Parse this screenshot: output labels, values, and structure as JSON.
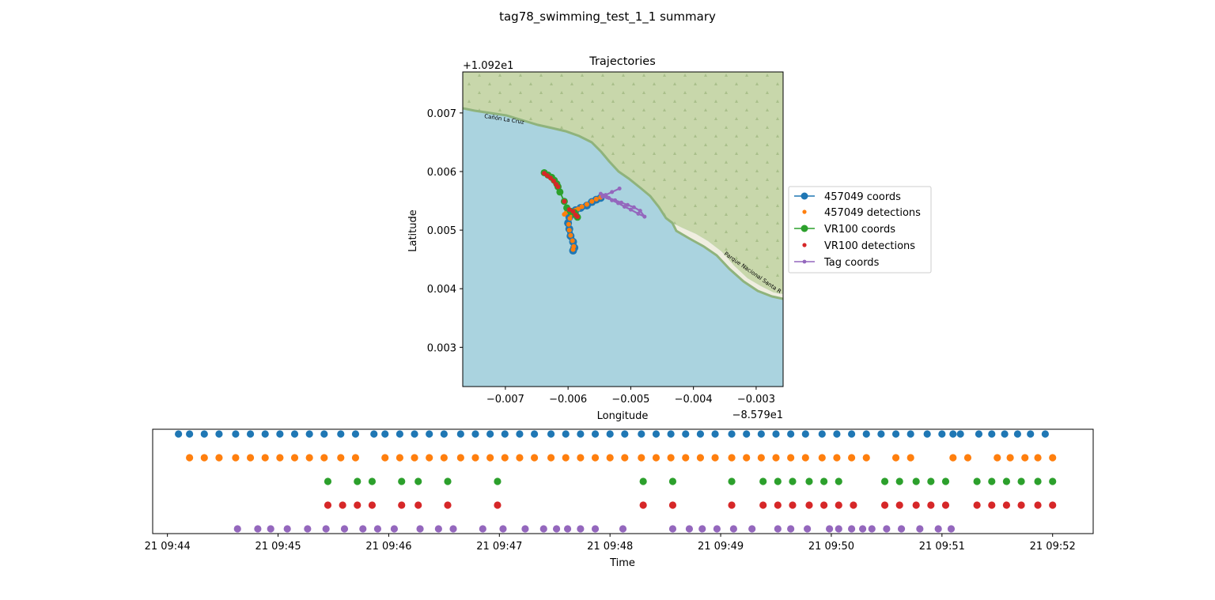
{
  "figure": {
    "title": "tag78_swimming_test_1_1 summary"
  },
  "colors": {
    "blue": "#1f77b4",
    "orange": "#ff7f0e",
    "green": "#2ca02c",
    "red": "#d62728",
    "purple": "#9467bd",
    "water": "#aad3df",
    "land": "#c8d7ab",
    "beach": "#f0eee0",
    "coast": "#8fb37c"
  },
  "chart_data": [
    {
      "type": "line",
      "title": "Trajectories",
      "xlabel": "Longitude",
      "ylabel": "Latitude",
      "x_offset_label": "−8.579e1",
      "y_offset_label": "+1.092e1",
      "xlim": [
        -0.00768,
        -0.00257
      ],
      "ylim": [
        0.00233,
        0.0077
      ],
      "xticks": [
        -0.007,
        -0.006,
        -0.005,
        -0.004,
        -0.003
      ],
      "xtick_labels": [
        "−0.007",
        "−0.006",
        "−0.005",
        "−0.004",
        "−0.003"
      ],
      "yticks": [
        0.003,
        0.004,
        0.005,
        0.006,
        0.007
      ],
      "ytick_labels": [
        "0.003",
        "0.004",
        "0.005",
        "0.006",
        "0.007"
      ],
      "map_labels": [
        "Cañón La Cruz",
        "Parque Nacional Santa R"
      ],
      "legend_placement": "right",
      "series": [
        {
          "name": "457049 coords",
          "color": "#1f77b4",
          "style": "line-marker",
          "x": [
            -0.00592,
            -0.0059,
            -0.00592,
            -0.00596,
            -0.00598,
            -0.006,
            -0.00598,
            -0.00592,
            -0.0059,
            -0.00588,
            -0.0058,
            -0.0057,
            -0.00562,
            -0.00555,
            -0.00548
          ],
          "y": [
            0.00465,
            0.0047,
            0.0048,
            0.0049,
            0.00502,
            0.00512,
            0.00522,
            0.00528,
            0.00532,
            0.00534,
            0.00538,
            0.00542,
            0.00548,
            0.00552,
            0.00555
          ]
        },
        {
          "name": "457049 detections",
          "color": "#ff7f0e",
          "style": "marker",
          "x": [
            -0.00592,
            -0.00591,
            -0.00593,
            -0.00596,
            -0.00598,
            -0.00599,
            -0.00597,
            -0.00594,
            -0.0059,
            -0.00588,
            -0.00584,
            -0.00578,
            -0.0057,
            -0.00562,
            -0.00555,
            -0.00548,
            -0.00603,
            -0.00606
          ],
          "y": [
            0.00467,
            0.00472,
            0.00482,
            0.00491,
            0.005,
            0.0051,
            0.0052,
            0.00527,
            0.00531,
            0.00534,
            0.00536,
            0.0054,
            0.00544,
            0.00549,
            0.00553,
            0.00556,
            0.0053,
            0.00527
          ]
        },
        {
          "name": "VR100 coords",
          "color": "#2ca02c",
          "style": "line-marker",
          "x": [
            -0.00638,
            -0.00632,
            -0.00626,
            -0.00622,
            -0.00618,
            -0.00616,
            -0.00613,
            -0.00606,
            -0.00602,
            -0.00596,
            -0.0059,
            -0.00585,
            -0.00588
          ],
          "y": [
            0.00598,
            0.00594,
            0.0059,
            0.00585,
            0.00579,
            0.00574,
            0.00565,
            0.00549,
            0.00538,
            0.00532,
            0.0053,
            0.00522,
            0.00526
          ]
        },
        {
          "name": "VR100 detections",
          "color": "#d62728",
          "style": "marker",
          "x": [
            -0.00638,
            -0.00633,
            -0.00628,
            -0.00623,
            -0.00619,
            -0.00616,
            -0.00606,
            -0.00598,
            -0.00592,
            -0.00588,
            -0.00585
          ],
          "y": [
            0.00597,
            0.00593,
            0.00589,
            0.00584,
            0.00578,
            0.00574,
            0.00549,
            0.00535,
            0.00532,
            0.00526,
            0.00523
          ]
        },
        {
          "name": "Tag coords",
          "color": "#9467bd",
          "style": "line-marker",
          "x": [
            -0.00518,
            -0.0053,
            -0.0054,
            -0.00548,
            -0.00545,
            -0.00535,
            -0.00525,
            -0.00515,
            -0.00505,
            -0.00495,
            -0.00485,
            -0.00478,
            -0.00488,
            -0.005,
            -0.0051,
            -0.0052,
            -0.0053,
            -0.00538
          ],
          "y": [
            0.00571,
            0.00565,
            0.0056,
            0.00562,
            0.00557,
            0.00555,
            0.00551,
            0.00547,
            0.00543,
            0.00539,
            0.00533,
            0.00523,
            0.00528,
            0.00535,
            0.0054,
            0.00546,
            0.00551,
            0.00556
          ]
        }
      ]
    },
    {
      "type": "scatter",
      "xlabel": "Time",
      "xlim": [
        "21 09:43:52",
        "21 09:52:22"
      ],
      "xticks": [
        "21 09:44",
        "21 09:45",
        "21 09:46",
        "21 09:47",
        "21 09:48",
        "21 09:49",
        "21 09:50",
        "21 09:51",
        "21 09:52"
      ],
      "series": [
        {
          "name": "457049 coords",
          "color": "#1f77b4",
          "x": [
            "09:44:06",
            "09:44:12",
            "09:44:20",
            "09:44:28",
            "09:44:37",
            "09:44:45",
            "09:44:53",
            "09:45:01",
            "09:45:09",
            "09:45:17",
            "09:45:25",
            "09:45:34",
            "09:45:42",
            "09:45:52",
            "09:45:58",
            "09:46:06",
            "09:46:14",
            "09:46:22",
            "09:46:30",
            "09:46:39",
            "09:46:47",
            "09:46:55",
            "09:47:03",
            "09:47:11",
            "09:47:19",
            "09:47:28",
            "09:47:36",
            "09:47:44",
            "09:47:52",
            "09:48:00",
            "09:48:08",
            "09:48:17",
            "09:48:25",
            "09:48:33",
            "09:48:41",
            "09:48:49",
            "09:48:57",
            "09:49:06",
            "09:49:14",
            "09:49:22",
            "09:49:30",
            "09:49:38",
            "09:49:46",
            "09:49:55",
            "09:50:03",
            "09:50:11",
            "09:50:19",
            "09:50:27",
            "09:50:35",
            "09:50:43",
            "09:50:52",
            "09:51:00",
            "09:51:06",
            "09:51:10",
            "09:51:20",
            "09:51:27",
            "09:51:34",
            "09:51:41",
            "09:51:48",
            "09:51:56"
          ]
        },
        {
          "name": "457049 detections",
          "color": "#ff7f0e",
          "x": [
            "09:44:12",
            "09:44:20",
            "09:44:28",
            "09:44:37",
            "09:44:45",
            "09:44:53",
            "09:45:01",
            "09:45:09",
            "09:45:17",
            "09:45:25",
            "09:45:34",
            "09:45:42",
            "09:45:58",
            "09:46:06",
            "09:46:14",
            "09:46:22",
            "09:46:30",
            "09:46:39",
            "09:46:47",
            "09:46:55",
            "09:47:03",
            "09:47:11",
            "09:47:19",
            "09:47:28",
            "09:47:36",
            "09:47:44",
            "09:47:52",
            "09:48:00",
            "09:48:08",
            "09:48:17",
            "09:48:25",
            "09:48:33",
            "09:48:41",
            "09:48:49",
            "09:48:57",
            "09:49:06",
            "09:49:14",
            "09:49:22",
            "09:49:30",
            "09:49:38",
            "09:49:46",
            "09:49:55",
            "09:50:03",
            "09:50:11",
            "09:50:19",
            "09:50:35",
            "09:50:43",
            "09:51:06",
            "09:51:14",
            "09:51:30",
            "09:51:37",
            "09:51:45",
            "09:51:52",
            "09:52:00"
          ]
        },
        {
          "name": "VR100 coords",
          "color": "#2ca02c",
          "x": [
            "09:45:27",
            "09:45:43",
            "09:45:51",
            "09:46:07",
            "09:46:16",
            "09:46:32",
            "09:46:59",
            "09:48:18",
            "09:48:34",
            "09:49:06",
            "09:49:23",
            "09:49:31",
            "09:49:39",
            "09:49:48",
            "09:49:56",
            "09:50:04",
            "09:50:29",
            "09:50:37",
            "09:50:46",
            "09:50:54",
            "09:51:02",
            "09:51:19",
            "09:51:27",
            "09:51:35",
            "09:51:43",
            "09:51:52",
            "09:52:00"
          ]
        },
        {
          "name": "VR100 detections",
          "color": "#d62728",
          "x": [
            "09:45:27",
            "09:45:35",
            "09:45:43",
            "09:45:51",
            "09:46:07",
            "09:46:16",
            "09:46:32",
            "09:46:59",
            "09:48:18",
            "09:48:34",
            "09:49:06",
            "09:49:23",
            "09:49:31",
            "09:49:39",
            "09:49:48",
            "09:49:56",
            "09:50:04",
            "09:50:12",
            "09:50:29",
            "09:50:37",
            "09:50:46",
            "09:50:54",
            "09:51:02",
            "09:51:19",
            "09:51:27",
            "09:51:35",
            "09:51:43",
            "09:51:52",
            "09:52:00"
          ]
        },
        {
          "name": "Tag coords",
          "color": "#9467bd",
          "x": [
            "09:44:38",
            "09:44:49",
            "09:44:56",
            "09:45:05",
            "09:45:16",
            "09:45:26",
            "09:45:36",
            "09:45:46",
            "09:45:54",
            "09:46:03",
            "09:46:17",
            "09:46:27",
            "09:46:35",
            "09:46:51",
            "09:47:02",
            "09:47:14",
            "09:47:24",
            "09:47:31",
            "09:47:37",
            "09:47:44",
            "09:47:52",
            "09:48:07",
            "09:48:34",
            "09:48:43",
            "09:48:50",
            "09:48:58",
            "09:49:07",
            "09:49:17",
            "09:49:31",
            "09:49:38",
            "09:49:47",
            "09:49:59",
            "09:50:04",
            "09:50:11",
            "09:50:17",
            "09:50:22",
            "09:50:30",
            "09:50:38",
            "09:50:48",
            "09:50:58",
            "09:51:05"
          ]
        }
      ]
    }
  ]
}
